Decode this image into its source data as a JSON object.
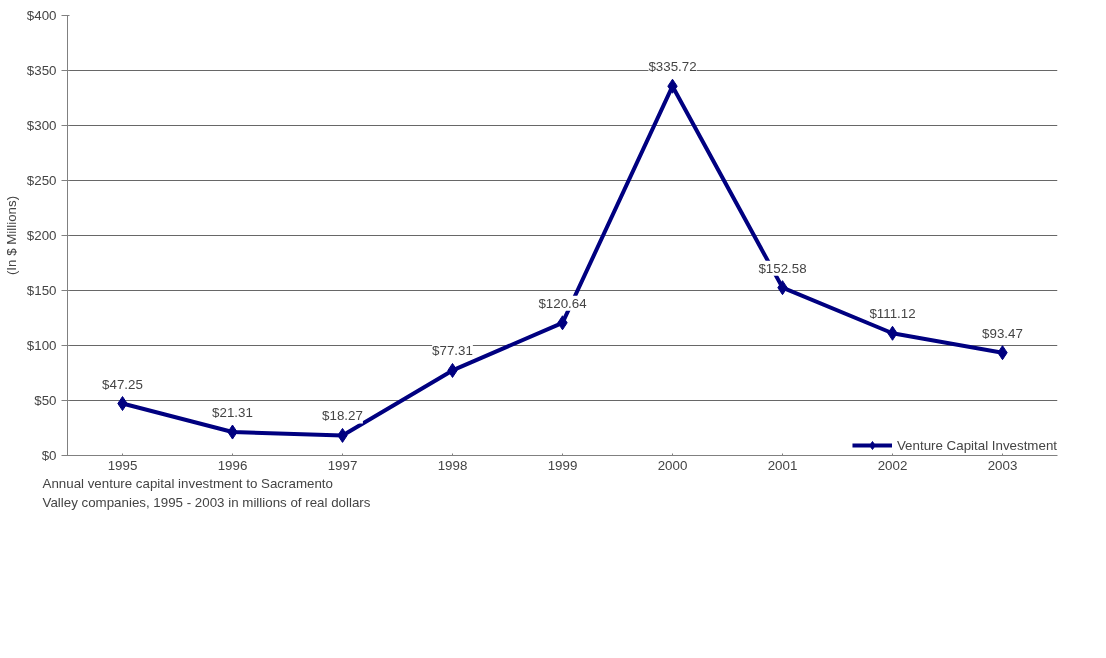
{
  "chart_data": {
    "type": "line",
    "ylabel": "(In $ Millions)",
    "categories": [
      "1995",
      "1996",
      "1997",
      "1998",
      "1999",
      "2000",
      "2001",
      "2002",
      "2003"
    ],
    "series": [
      {
        "name": "Venture Capital Investment",
        "color": "#000080",
        "values": [
          47.25,
          21.31,
          18.27,
          77.31,
          120.64,
          335.72,
          152.58,
          111.12,
          93.47
        ],
        "value_labels": [
          "$47.25",
          "$21.31",
          "$18.27",
          "$77.31",
          "$120.64",
          "$335.72",
          "$152.58",
          "$111.12",
          "$93.47"
        ]
      }
    ],
    "ylim": [
      0,
      400
    ],
    "yticks": [
      {
        "value": 0,
        "label": "$0"
      },
      {
        "value": 50,
        "label": "$50"
      },
      {
        "value": 100,
        "label": "$100"
      },
      {
        "value": 150,
        "label": "$150"
      },
      {
        "value": 200,
        "label": "$200"
      },
      {
        "value": 250,
        "label": "$250"
      },
      {
        "value": 300,
        "label": "$300"
      },
      {
        "value": 350,
        "label": "$350"
      },
      {
        "value": 400,
        "label": "$400"
      }
    ],
    "grid": "y",
    "marker": "diamond",
    "line_style": "solid",
    "legend": "bottom right",
    "annotations": [
      "Annual venture capital investment to Sacramento\nValley companies, 1995 - 2003 in millions of real dollars"
    ]
  }
}
